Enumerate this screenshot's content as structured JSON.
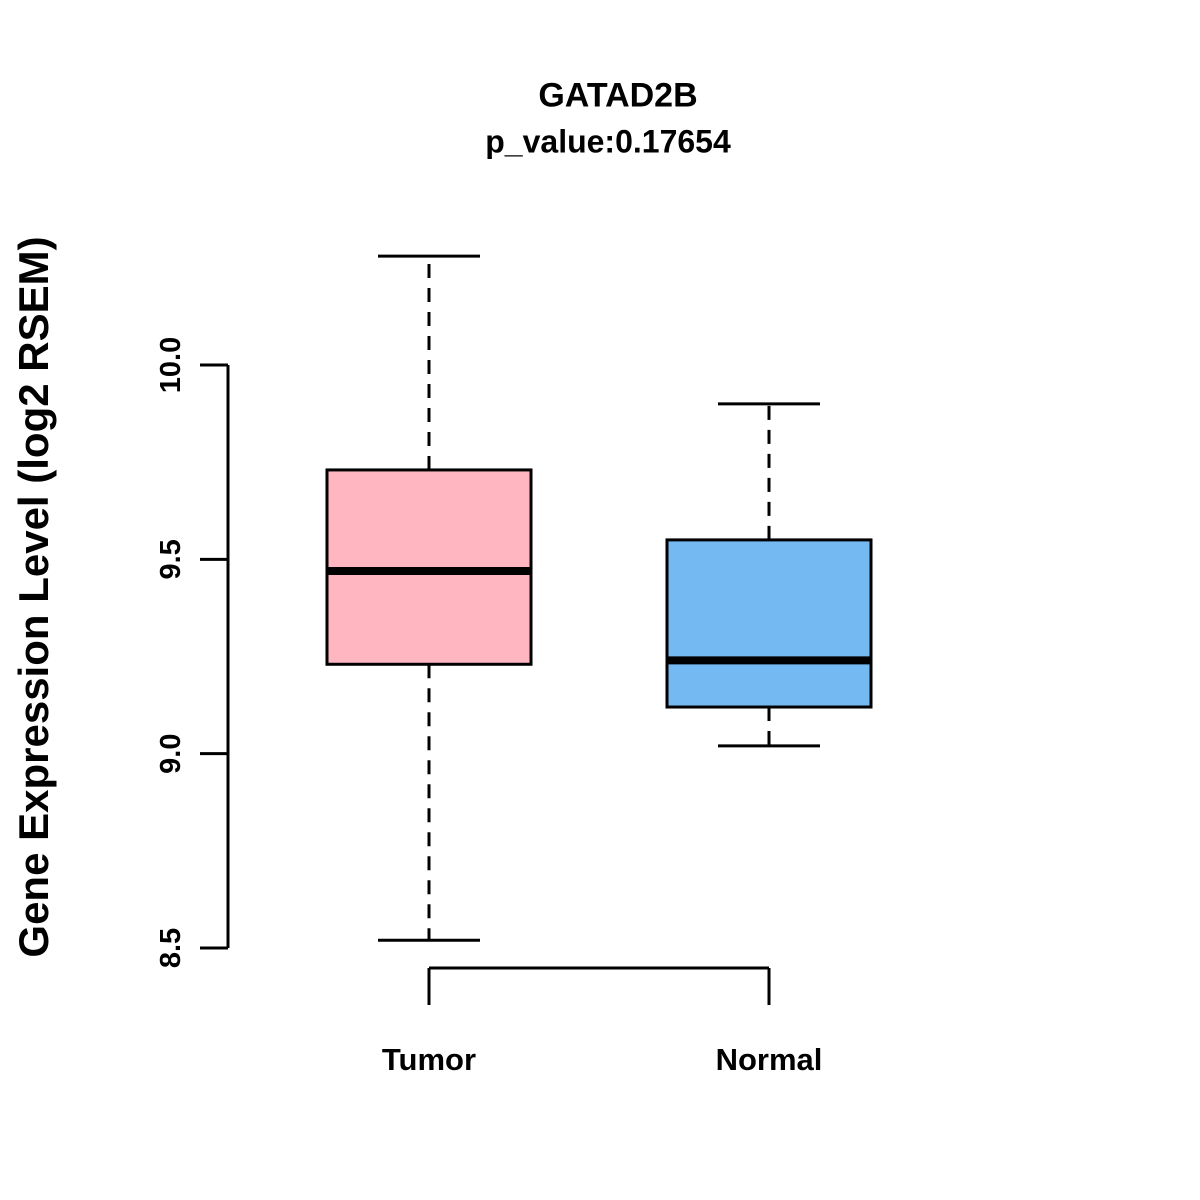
{
  "title": "GATAD2B",
  "subtitle": "p_value:0.17654",
  "ylabel": "Gene Expression Level (log2 RSEM)",
  "chart_data": {
    "type": "boxplot",
    "title": "GATAD2B",
    "subtitle": "p_value:0.17654",
    "ylabel": "Gene Expression Level (log2 RSEM)",
    "categories": [
      "Tumor",
      "Normal"
    ],
    "series": [
      {
        "name": "Tumor",
        "color": "#FFB6C1",
        "whisker_low": 8.52,
        "q1": 9.23,
        "median": 9.47,
        "q3": 9.73,
        "whisker_high": 10.28
      },
      {
        "name": "Normal",
        "color": "#74B9F1",
        "whisker_low": 9.02,
        "q1": 9.12,
        "median": 9.24,
        "q3": 9.55,
        "whisker_high": 9.9
      }
    ],
    "yticks": [
      8.5,
      9.0,
      9.5,
      10.0
    ],
    "ylim": [
      8.45,
      10.3
    ],
    "grid": false,
    "legend": "none",
    "axis_color": "#000000",
    "median_color": "#000000"
  }
}
